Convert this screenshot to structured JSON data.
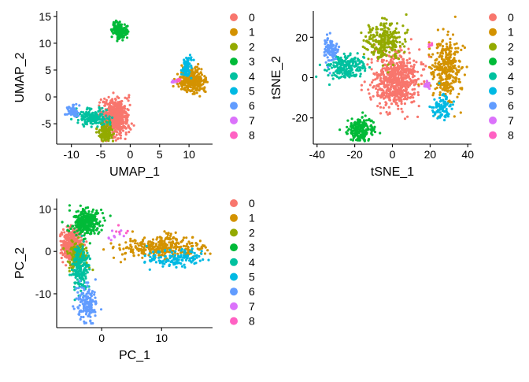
{
  "legend": {
    "labels": [
      "0",
      "1",
      "2",
      "3",
      "4",
      "5",
      "6",
      "7",
      "8"
    ],
    "colors": [
      "#F8766D",
      "#D39200",
      "#93AA00",
      "#00BA38",
      "#00C19F",
      "#00B9E3",
      "#619CFF",
      "#DB72FB",
      "#FF61C3"
    ]
  },
  "chart_data": [
    {
      "type": "scatter",
      "id": "umap",
      "xlabel": "UMAP_1",
      "ylabel": "UMAP_2",
      "xlim": [
        -12.5,
        14
      ],
      "ylim": [
        -8.8,
        16
      ],
      "xticks": [
        -10,
        -5,
        0,
        5,
        10
      ],
      "yticks": [
        -5,
        0,
        5,
        10,
        15
      ],
      "grid": false,
      "legend_position": "right",
      "clusters": [
        {
          "name": "0",
          "cx": -2.5,
          "cy": -3.8,
          "sx": 1.1,
          "sy": 1.7,
          "n": 550
        },
        {
          "name": "1",
          "cx": 10.4,
          "cy": 3.0,
          "sx": 1.2,
          "sy": 1.1,
          "n": 280
        },
        {
          "name": "2",
          "cx": -4.2,
          "cy": -6.6,
          "sx": 0.6,
          "sy": 0.8,
          "n": 140
        },
        {
          "name": "3",
          "cx": -1.8,
          "cy": 12.4,
          "sx": 0.6,
          "sy": 0.7,
          "n": 170
        },
        {
          "name": "4",
          "cx": -6.5,
          "cy": -3.8,
          "sx": 1.4,
          "sy": 0.7,
          "n": 170
        },
        {
          "name": "5",
          "cx": 9.6,
          "cy": 5.4,
          "sx": 0.4,
          "sy": 1.0,
          "n": 80
        },
        {
          "name": "6",
          "cx": -9.8,
          "cy": -2.6,
          "sx": 0.5,
          "sy": 0.5,
          "n": 60
        },
        {
          "name": "7",
          "cx": 7.7,
          "cy": 3.0,
          "sx": 0.4,
          "sy": 0.2,
          "n": 15
        },
        {
          "name": "8",
          "cx": 8.2,
          "cy": 3.1,
          "sx": 0.3,
          "sy": 0.2,
          "n": 10
        }
      ]
    },
    {
      "type": "scatter",
      "id": "tsne",
      "xlabel": "tSNE_1",
      "ylabel": "tSNE_2",
      "xlim": [
        -42,
        42
      ],
      "ylim": [
        -33,
        33
      ],
      "xticks": [
        -40,
        -20,
        0,
        20,
        40
      ],
      "yticks": [
        -20,
        0,
        20
      ],
      "grid": false,
      "legend_position": "right",
      "clusters": [
        {
          "name": "0",
          "cx": 2.0,
          "cy": -1.0,
          "sx": 6.0,
          "sy": 7.0,
          "n": 650
        },
        {
          "name": "1",
          "cx": 29.0,
          "cy": 5.0,
          "sx": 4.0,
          "sy": 8.0,
          "n": 320
        },
        {
          "name": "2",
          "cx": -4.0,
          "cy": 18.0,
          "sx": 5.0,
          "sy": 5.0,
          "n": 260
        },
        {
          "name": "3",
          "cx": -17.0,
          "cy": -26.0,
          "sx": 3.5,
          "sy": 3.0,
          "n": 200
        },
        {
          "name": "4",
          "cx": -25.0,
          "cy": 5.0,
          "sx": 5.0,
          "sy": 3.0,
          "n": 200
        },
        {
          "name": "5",
          "cx": 26.0,
          "cy": -15.0,
          "sx": 2.5,
          "sy": 3.0,
          "n": 100
        },
        {
          "name": "6",
          "cx": -33.0,
          "cy": 14.0,
          "sx": 2.0,
          "sy": 3.0,
          "n": 100
        },
        {
          "name": "7",
          "cx": 19.0,
          "cy": -4.0,
          "sx": 1.0,
          "sy": 1.0,
          "n": 15
        },
        {
          "name": "8",
          "cx": 20.0,
          "cy": 16.0,
          "sx": 0.6,
          "sy": 0.6,
          "n": 5
        }
      ]
    },
    {
      "type": "scatter",
      "id": "pca",
      "xlabel": "PC_1",
      "ylabel": "PC_2",
      "xlim": [
        -7.5,
        18.5
      ],
      "ylim": [
        -18,
        12.5
      ],
      "xticks": [
        0,
        10
      ],
      "yticks": [
        -10,
        0,
        10
      ],
      "grid": false,
      "legend_position": "right",
      "clusters": [
        {
          "name": "0",
          "cx": -5.0,
          "cy": 1.5,
          "sx": 0.8,
          "sy": 1.8,
          "n": 400
        },
        {
          "name": "1",
          "cx": 10.0,
          "cy": 1.0,
          "sx": 3.5,
          "sy": 1.3,
          "n": 320
        },
        {
          "name": "2",
          "cx": -4.0,
          "cy": -1.0,
          "sx": 0.8,
          "sy": 1.6,
          "n": 140
        },
        {
          "name": "3",
          "cx": -2.5,
          "cy": 7.0,
          "sx": 1.3,
          "sy": 1.6,
          "n": 260
        },
        {
          "name": "4",
          "cx": -3.5,
          "cy": -4.0,
          "sx": 0.7,
          "sy": 2.8,
          "n": 200
        },
        {
          "name": "5",
          "cx": 12.5,
          "cy": -1.8,
          "sx": 2.5,
          "sy": 1.0,
          "n": 140
        },
        {
          "name": "6",
          "cx": -2.5,
          "cy": -12.5,
          "sx": 0.9,
          "sy": 2.2,
          "n": 140
        },
        {
          "name": "7",
          "cx": 2.0,
          "cy": 4.0,
          "sx": 0.8,
          "sy": 0.8,
          "n": 10
        },
        {
          "name": "8",
          "cx": 3.0,
          "cy": 4.5,
          "sx": 0.6,
          "sy": 0.6,
          "n": 5
        }
      ]
    }
  ]
}
